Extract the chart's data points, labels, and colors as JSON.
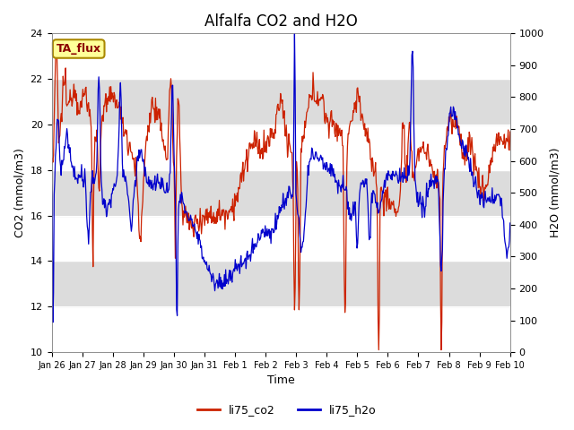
{
  "title": "Alfalfa CO2 and H2O",
  "xlabel": "Time",
  "ylabel_left": "CO2 (mmol/m3)",
  "ylabel_right": "H2O (mmol/m3)",
  "ylim_left": [
    10,
    24
  ],
  "ylim_right": [
    0,
    1000
  ],
  "yticks_left": [
    10,
    12,
    14,
    16,
    18,
    20,
    22,
    24
  ],
  "yticks_right": [
    0,
    100,
    200,
    300,
    400,
    500,
    600,
    700,
    800,
    900,
    1000
  ],
  "xtick_labels": [
    "Jan 26",
    "Jan 27",
    "Jan 28",
    "Jan 29",
    "Jan 30",
    "Jan 31",
    "Feb 1",
    "Feb 2",
    "Feb 3",
    "Feb 4",
    "Feb 5",
    "Feb 6",
    "Feb 7",
    "Feb 8",
    "Feb 9",
    "Feb 10"
  ],
  "annotation_text": "TA_flux",
  "annotation_color": "#8B0000",
  "annotation_bg": "#FFFF99",
  "annotation_edge": "#AA8800",
  "line_co2_color": "#CC2200",
  "line_h2o_color": "#0000CC",
  "legend_labels": [
    "li75_co2",
    "li75_h2o"
  ],
  "bg_color": "#FFFFFF",
  "band_color_even": "#DCDCDC",
  "band_color_odd": "#FFFFFF",
  "grid_color": "#FFFFFF",
  "title_fontsize": 12,
  "axis_label_fontsize": 9,
  "tick_fontsize": 8,
  "n_days": 15,
  "n_points": 720
}
